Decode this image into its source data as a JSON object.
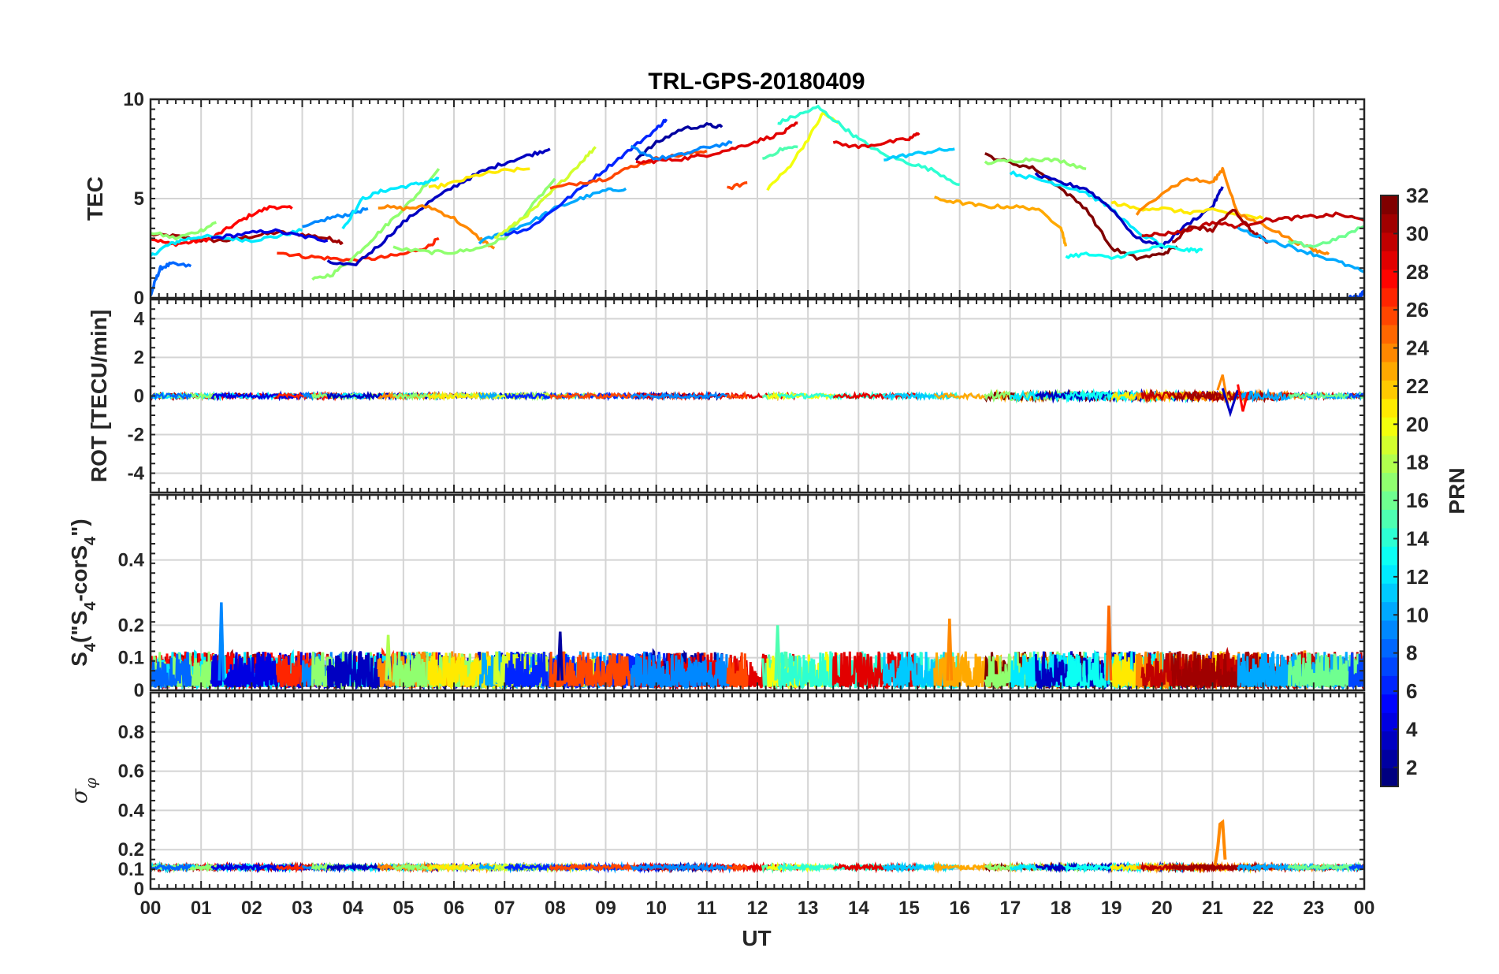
{
  "figure_title": "TRL-GPS-20180409",
  "x_axis_label": "UT",
  "x_tick_labels": [
    "00",
    "01",
    "02",
    "03",
    "04",
    "05",
    "06",
    "07",
    "08",
    "09",
    "10",
    "11",
    "12",
    "13",
    "14",
    "15",
    "16",
    "17",
    "18",
    "19",
    "20",
    "21",
    "22",
    "23",
    "00"
  ],
  "colorbar": {
    "label": "PRN",
    "tick_labels": [
      "2",
      "4",
      "6",
      "8",
      "10",
      "12",
      "14",
      "16",
      "18",
      "20",
      "22",
      "24",
      "26",
      "28",
      "30",
      "32"
    ],
    "range": [
      1,
      32
    ],
    "colormap": "jet"
  },
  "colors": {
    "grid": "#d4d4d4",
    "axes": "#262626",
    "background": "#ffffff"
  },
  "panels": [
    {
      "id": "tec",
      "ylabel": "TEC",
      "ylim": [
        0,
        10
      ],
      "yticks": [
        "0",
        "5",
        "10"
      ]
    },
    {
      "id": "rot",
      "ylabel": "ROT [TECU/min]",
      "ylim": [
        -5,
        5
      ],
      "yticks": [
        "-4",
        "-2",
        "0",
        "2",
        "4"
      ]
    },
    {
      "id": "s4",
      "ylabel_parts": [
        "S",
        "4",
        "(\"S",
        "4",
        "-corS",
        "4",
        "\")"
      ],
      "ylim": [
        0,
        0.6
      ],
      "yticks": [
        "0",
        "0.1",
        "0.2",
        "0.4"
      ]
    },
    {
      "id": "sigma",
      "ylabel_parts": [
        "σ",
        "φ"
      ],
      "ylim": [
        0,
        1
      ],
      "yticks": [
        "0",
        "0.1",
        "0.2",
        "0.4",
        "0.6",
        "0.8"
      ]
    }
  ],
  "chart_data": [
    {
      "type": "line",
      "title": "TRL-GPS-20180409",
      "xlabel": "",
      "ylabel": "TEC",
      "xlim": [
        0,
        24
      ],
      "ylim": [
        0,
        10
      ],
      "color_by": "PRN",
      "series": [
        {
          "name": "PRN 31",
          "prn": 31,
          "x": [
            0,
            0.5,
            1,
            1.5,
            2,
            2.5,
            3,
            3.5,
            3.8
          ],
          "y": [
            3.2,
            3.1,
            2.9,
            2.9,
            3.1,
            3.3,
            3.2,
            3.0,
            2.8
          ]
        },
        {
          "name": "PRN 28",
          "prn": 28,
          "x": [
            0,
            0.4,
            0.8,
            1.2,
            1.6,
            2,
            2.4,
            2.8
          ],
          "y": [
            3.0,
            2.7,
            2.8,
            3.0,
            3.6,
            4.2,
            4.6,
            4.5
          ]
        },
        {
          "name": "PRN 12",
          "prn": 12,
          "x": [
            0,
            0.3,
            0.6,
            1,
            1.5,
            2,
            2.5,
            3
          ],
          "y": [
            2.1,
            2.6,
            2.9,
            3.1,
            3.0,
            2.9,
            3.1,
            3.4
          ]
        },
        {
          "name": "PRN 17",
          "prn": 17,
          "x": [
            0,
            0.5,
            1.0,
            1.3
          ],
          "y": [
            3.3,
            3.0,
            3.4,
            3.8
          ]
        },
        {
          "name": "PRN 8",
          "prn": 8,
          "x": [
            0,
            0.1,
            0.2,
            0.4,
            0.8
          ],
          "y": [
            0.1,
            0.9,
            1.5,
            1.7,
            1.6
          ]
        },
        {
          "name": "PRN 4",
          "prn": 4,
          "x": [
            1.2,
            1.8,
            2.4,
            3.0,
            3.5
          ],
          "y": [
            3.0,
            3.2,
            3.4,
            3.1,
            2.9
          ]
        },
        {
          "name": "PRN 27",
          "prn": 27,
          "x": [
            2.5,
            3,
            3.5,
            4,
            4.5,
            5,
            5.5,
            5.7
          ],
          "y": [
            2.3,
            2.1,
            2.0,
            1.9,
            2.0,
            2.2,
            2.6,
            3.0
          ]
        },
        {
          "name": "PRN 9",
          "prn": 9,
          "x": [
            3,
            3.5,
            3.9,
            4.3
          ],
          "y": [
            3.5,
            4.0,
            4.2,
            4.5
          ]
        },
        {
          "name": "PRN 17",
          "prn": 17,
          "x": [
            3.2,
            3.6,
            4,
            4.4,
            4.8,
            5.2,
            5.7
          ],
          "y": [
            0.9,
            1.2,
            2.0,
            3.0,
            4.0,
            5.0,
            6.5
          ]
        },
        {
          "name": "PRN 12",
          "prn": 12,
          "x": [
            3.8,
            4.2,
            4.6,
            5,
            5.4,
            5.7
          ],
          "y": [
            3.5,
            5.0,
            5.4,
            5.6,
            5.8,
            6.0
          ]
        },
        {
          "name": "PRN 3",
          "prn": 3,
          "x": [
            3.5,
            4,
            4.5,
            5,
            5.5,
            6,
            6.5,
            7,
            7.5,
            7.9
          ],
          "y": [
            1.8,
            1.6,
            2.6,
            3.8,
            4.8,
            5.6,
            6.3,
            6.8,
            7.2,
            7.5
          ]
        },
        {
          "name": "PRN 24",
          "prn": 24,
          "x": [
            4.5,
            5,
            5.5,
            6,
            6.5,
            6.8
          ],
          "y": [
            4.6,
            4.5,
            4.6,
            4.0,
            3.0,
            2.5
          ]
        },
        {
          "name": "PRN 17",
          "prn": 17,
          "x": [
            4.8,
            5.5,
            6,
            6.5,
            7,
            7.5,
            8
          ],
          "y": [
            2.5,
            2.3,
            2.3,
            2.5,
            3.0,
            4.5,
            6.0
          ]
        },
        {
          "name": "PRN 21",
          "prn": 21,
          "x": [
            5.5,
            6,
            6.5,
            7,
            7.5
          ],
          "y": [
            5.5,
            5.8,
            6.2,
            6.4,
            6.5
          ]
        },
        {
          "name": "PRN 10",
          "prn": 10,
          "x": [
            6.5,
            7,
            7.5,
            8,
            8.5,
            9,
            9.4
          ],
          "y": [
            2.8,
            3.3,
            3.8,
            4.5,
            5.0,
            5.4,
            5.5
          ]
        },
        {
          "name": "PRN 19",
          "prn": 19,
          "x": [
            6.8,
            7.2,
            7.6,
            8,
            8.5,
            8.8
          ],
          "y": [
            3.0,
            3.7,
            4.5,
            5.5,
            6.8,
            7.6
          ]
        },
        {
          "name": "PRN 6",
          "prn": 6,
          "x": [
            7,
            7.5,
            8,
            8.5,
            9,
            9.5,
            10,
            10.2
          ],
          "y": [
            3.2,
            3.5,
            4.5,
            5.5,
            6.5,
            7.5,
            8.5,
            9.0
          ]
        },
        {
          "name": "PRN 26",
          "prn": 26,
          "x": [
            7.9,
            8.5,
            9,
            9.5,
            10,
            10.5,
            11
          ],
          "y": [
            5.5,
            5.8,
            6.0,
            6.6,
            7.0,
            7.2,
            7.4
          ]
        },
        {
          "name": "PRN 2",
          "prn": 2,
          "x": [
            9.6,
            10,
            10.5,
            11,
            11.3
          ],
          "y": [
            7.0,
            7.8,
            8.5,
            8.7,
            8.6
          ]
        },
        {
          "name": "PRN 29",
          "prn": 29,
          "x": [
            9.6,
            10,
            10.5,
            11,
            11.5,
            12,
            12.5,
            12.8
          ],
          "y": [
            6.8,
            6.9,
            7.0,
            7.2,
            7.5,
            7.9,
            8.3,
            8.8
          ]
        },
        {
          "name": "PRN 9",
          "prn": 9,
          "x": [
            9.5,
            10,
            10.5,
            11,
            11.5
          ],
          "y": [
            7.6,
            7.0,
            7.2,
            7.6,
            7.8
          ]
        },
        {
          "name": "PRN 26",
          "prn": 26,
          "x": [
            11.4,
            11.8
          ],
          "y": [
            5.5,
            5.8
          ]
        },
        {
          "name": "PRN 15",
          "prn": 15,
          "x": [
            12.1,
            12.5,
            12.8
          ],
          "y": [
            7.0,
            7.5,
            7.6
          ]
        },
        {
          "name": "PRN 20",
          "prn": 20,
          "x": [
            12.2,
            12.6,
            13,
            13.3,
            13.6
          ],
          "y": [
            5.5,
            6.5,
            8.0,
            9.3,
            8.8
          ]
        },
        {
          "name": "PRN 14",
          "prn": 14,
          "x": [
            12.4,
            12.8,
            13.2,
            13.6,
            14,
            14.5,
            15,
            15.5,
            16
          ],
          "y": [
            8.8,
            9.2,
            9.6,
            8.8,
            8.0,
            7.2,
            6.8,
            6.4,
            5.7
          ]
        },
        {
          "name": "PRN 29",
          "prn": 29,
          "x": [
            13.5,
            14,
            14.5,
            15,
            15.2
          ],
          "y": [
            7.8,
            7.6,
            7.8,
            8.0,
            8.3
          ]
        },
        {
          "name": "PRN 11",
          "prn": 11,
          "x": [
            14.5,
            15,
            15.5,
            15.9
          ],
          "y": [
            7.0,
            7.2,
            7.4,
            7.5
          ]
        },
        {
          "name": "PRN 23",
          "prn": 23,
          "x": [
            15.5,
            16,
            16.5,
            17,
            17.5,
            18,
            18.1
          ],
          "y": [
            5.0,
            4.8,
            4.6,
            4.6,
            4.5,
            3.6,
            2.6
          ]
        },
        {
          "name": "PRN 32",
          "prn": 32,
          "x": [
            16.5,
            17,
            17.5,
            18,
            18.5,
            19,
            19.5,
            20,
            20.3
          ],
          "y": [
            7.2,
            6.8,
            6.5,
            5.5,
            4.5,
            2.5,
            2.0,
            2.2,
            2.6
          ]
        },
        {
          "name": "PRN 17",
          "prn": 17,
          "x": [
            16.5,
            17,
            17.5,
            18,
            18.5
          ],
          "y": [
            6.8,
            6.9,
            7.0,
            6.9,
            6.5
          ]
        },
        {
          "name": "PRN 12",
          "prn": 12,
          "x": [
            17,
            17.5,
            18,
            18.5,
            19,
            19.5,
            20
          ],
          "y": [
            6.3,
            6.0,
            5.7,
            5.3,
            4.5,
            3.3,
            2.7
          ]
        },
        {
          "name": "PRN 3",
          "prn": 3,
          "x": [
            17.5,
            18,
            18.5,
            19,
            19.5,
            20,
            20.5,
            21,
            21.2
          ],
          "y": [
            6.2,
            5.8,
            5.5,
            4.5,
            3.0,
            2.6,
            3.7,
            4.6,
            5.6
          ]
        },
        {
          "name": "PRN 13",
          "prn": 13,
          "x": [
            18.1,
            18.5,
            19,
            19.5,
            20,
            20.5,
            20.8
          ],
          "y": [
            2.1,
            2.2,
            2.0,
            2.3,
            2.6,
            2.4,
            2.4
          ]
        },
        {
          "name": "PRN 21",
          "prn": 21,
          "x": [
            19,
            19.5,
            20,
            20.5,
            21,
            21.5,
            22
          ],
          "y": [
            4.8,
            4.5,
            4.5,
            4.3,
            4.4,
            4.2,
            4.0
          ]
        },
        {
          "name": "PRN 24",
          "prn": 24,
          "x": [
            19.5,
            20,
            20.5,
            21,
            21.2,
            21.5,
            22,
            22.5,
            23,
            23.3
          ],
          "y": [
            4.2,
            5.3,
            6.0,
            5.8,
            6.5,
            4.2,
            3.7,
            3.0,
            2.4,
            2.2
          ]
        },
        {
          "name": "PRN 30",
          "prn": 30,
          "x": [
            19.6,
            20,
            20.5,
            21,
            21.5,
            22,
            22.5,
            23,
            23.5,
            24
          ],
          "y": [
            3.2,
            3.2,
            3.4,
            3.8,
            3.6,
            3.9,
            4.0,
            4.1,
            4.2,
            3.9
          ]
        },
        {
          "name": "PRN 31",
          "prn": 31,
          "x": [
            20.2,
            20.6,
            21,
            21.4,
            21.8,
            22.1
          ],
          "y": [
            2.8,
            3.6,
            3.4,
            4.5,
            3.3,
            2.8
          ]
        },
        {
          "name": "PRN 10",
          "prn": 10,
          "x": [
            21.5,
            22,
            22.5,
            23,
            23.5,
            24
          ],
          "y": [
            3.5,
            3.0,
            2.6,
            2.2,
            1.8,
            1.3
          ]
        },
        {
          "name": "PRN 16",
          "prn": 16,
          "x": [
            22.5,
            23,
            23.5,
            24
          ],
          "y": [
            2.8,
            2.6,
            3.0,
            3.6
          ]
        },
        {
          "name": "PRN 7",
          "prn": 7,
          "x": [
            23.7,
            23.9,
            24
          ],
          "y": [
            0.0,
            0.1,
            0.3
          ]
        }
      ]
    },
    {
      "type": "line",
      "xlabel": "",
      "ylabel": "ROT [TECU/min]",
      "xlim": [
        0,
        24
      ],
      "ylim": [
        -5,
        5
      ],
      "description_values": {
        "typical_range": [
          -0.3,
          0.3
        ],
        "max_spike_x": 21.2,
        "max_spike_y": 1.1,
        "min_spike_x": 21.5,
        "min_spike_y": -0.9
      },
      "series": [
        {
          "name": "ROT spike PRN 24",
          "prn": 24,
          "x": [
            21.1,
            21.2,
            21.3
          ],
          "y": [
            0.3,
            1.1,
            -0.4
          ]
        },
        {
          "name": "ROT spike PRN 3",
          "prn": 3,
          "x": [
            21.2,
            21.35,
            21.5
          ],
          "y": [
            0.4,
            -0.9,
            0.3
          ]
        },
        {
          "name": "ROT spike PRN 28",
          "prn": 28,
          "x": [
            21.5,
            21.6,
            21.7
          ],
          "y": [
            0.6,
            -0.8,
            0.2
          ]
        }
      ]
    },
    {
      "type": "line",
      "xlabel": "",
      "ylabel": "S4 (\"S4-corS4\")",
      "xlim": [
        0,
        24
      ],
      "ylim": [
        0,
        0.6
      ],
      "description_values": {
        "typical_range": [
          0.01,
          0.12
        ]
      },
      "series": [
        {
          "name": "S4 spike PRN 9",
          "prn": 9,
          "x": [
            1.4
          ],
          "y": [
            0.27
          ]
        },
        {
          "name": "S4 spike PRN 24",
          "prn": 24,
          "x": [
            15.8
          ],
          "y": [
            0.22
          ]
        },
        {
          "name": "S4 spike PRN 25",
          "prn": 25,
          "x": [
            18.95
          ],
          "y": [
            0.26
          ]
        },
        {
          "name": "S4 spike PRN 15",
          "prn": 15,
          "x": [
            12.4
          ],
          "y": [
            0.2
          ]
        },
        {
          "name": "S4 spike PRN 18",
          "prn": 18,
          "x": [
            4.7
          ],
          "y": [
            0.17
          ]
        },
        {
          "name": "S4 spike PRN 2",
          "prn": 2,
          "x": [
            8.1
          ],
          "y": [
            0.18
          ]
        }
      ]
    },
    {
      "type": "line",
      "xlabel": "UT",
      "ylabel": "σφ",
      "xlim": [
        0,
        24
      ],
      "ylim": [
        0,
        1
      ],
      "description_values": {
        "baseline": 0.11
      },
      "series": [
        {
          "name": "Sigma phi spike PRN 24",
          "prn": 24,
          "x": [
            21.05,
            21.1,
            21.15,
            21.2,
            21.25
          ],
          "y": [
            0.12,
            0.2,
            0.33,
            0.34,
            0.15
          ]
        }
      ]
    }
  ]
}
